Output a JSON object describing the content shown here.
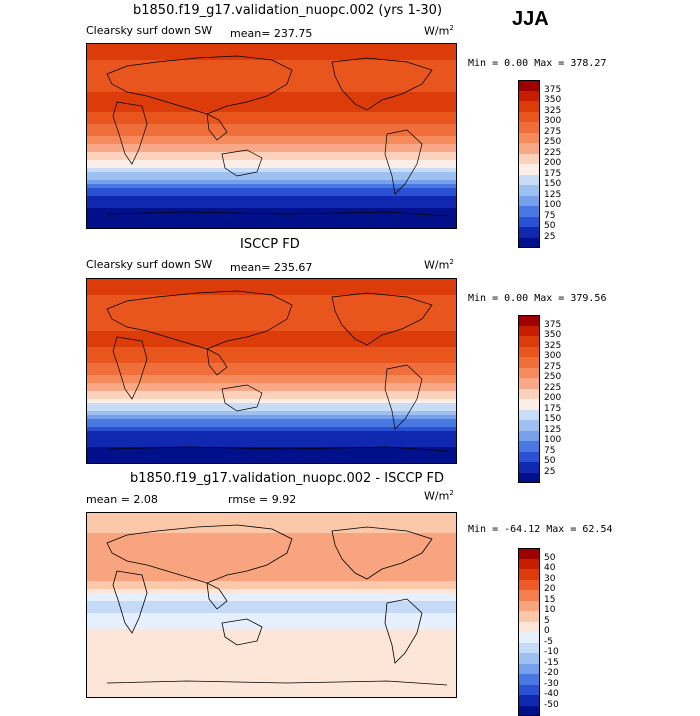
{
  "page": {
    "season": "JJA"
  },
  "panels": [
    {
      "id": "model",
      "title": "b1850.f19_g17.validation_nuopc.002 (yrs 1-30)",
      "variable": "Clearsky surf down SW",
      "mean_text": "mean= 237.75",
      "units_text": "W/m",
      "units_sup": "2",
      "minmax_text": "Min =   0.00 Max = 378.27"
    },
    {
      "id": "obs",
      "title": "ISCCP FD",
      "variable": "Clearsky surf down SW",
      "mean_text": "mean= 235.67",
      "units_text": "W/m",
      "units_sup": "2",
      "minmax_text": "Min =   0.00 Max = 379.56"
    },
    {
      "id": "diff",
      "title": "b1850.f19_g17.validation_nuopc.002 - ISCCP FD",
      "variable": "",
      "mean_text": "mean =   2.08",
      "rmse_text": "rmse =   9.92",
      "units_text": "W/m",
      "units_sup": "2",
      "minmax_text": "Min = -64.12 Max =  62.54"
    }
  ],
  "chart_data": [
    {
      "type": "heatmap",
      "title": "b1850.f19_g17.validation_nuopc.002 (yrs 1-30)",
      "subtitle": "Clearsky surf down SW",
      "mean": 237.75,
      "min": 0.0,
      "max": 378.27,
      "units": "W/m2",
      "colorbar": {
        "levels": [
          "375",
          "350",
          "325",
          "300",
          "275",
          "250",
          "225",
          "200",
          "175",
          "150",
          "125",
          "100",
          "75",
          "50",
          "25"
        ],
        "colors": [
          "#9e0000",
          "#c81e00",
          "#dc3c0a",
          "#e8561e",
          "#f06e3a",
          "#f58a5a",
          "#f8a886",
          "#fcd2bc",
          "#fbeee6",
          "#c8dcf6",
          "#9ec0f0",
          "#76a0ea",
          "#4a78e2",
          "#2a50d4",
          "#1028b0",
          "#00108a"
        ]
      },
      "lat_profile": [
        {
          "lat": 90,
          "value": 350
        },
        {
          "lat": 60,
          "value": 300
        },
        {
          "lat": 30,
          "value": 340
        },
        {
          "lat": 0,
          "value": 280
        },
        {
          "lat": -30,
          "value": 180
        },
        {
          "lat": -60,
          "value": 40
        },
        {
          "lat": -90,
          "value": 0
        }
      ]
    },
    {
      "type": "heatmap",
      "title": "ISCCP FD",
      "subtitle": "Clearsky surf down SW",
      "mean": 235.67,
      "min": 0.0,
      "max": 379.56,
      "units": "W/m2",
      "colorbar": {
        "levels": [
          "375",
          "350",
          "325",
          "300",
          "275",
          "250",
          "225",
          "200",
          "175",
          "150",
          "125",
          "100",
          "75",
          "50",
          "25"
        ],
        "colors": [
          "#9e0000",
          "#c81e00",
          "#dc3c0a",
          "#e8561e",
          "#f06e3a",
          "#f58a5a",
          "#f8a886",
          "#fcd2bc",
          "#fbeee6",
          "#c8dcf6",
          "#9ec0f0",
          "#76a0ea",
          "#4a78e2",
          "#2a50d4",
          "#1028b0",
          "#00108a"
        ]
      },
      "lat_profile": [
        {
          "lat": 90,
          "value": 345
        },
        {
          "lat": 60,
          "value": 305
        },
        {
          "lat": 30,
          "value": 335
        },
        {
          "lat": 0,
          "value": 285
        },
        {
          "lat": -30,
          "value": 185
        },
        {
          "lat": -60,
          "value": 45
        },
        {
          "lat": -90,
          "value": 0
        }
      ]
    },
    {
      "type": "heatmap",
      "title": "b1850.f19_g17.validation_nuopc.002 - ISCCP FD",
      "mean": 2.08,
      "rmse": 9.92,
      "min": -64.12,
      "max": 62.54,
      "units": "W/m2",
      "colorbar": {
        "levels": [
          "50",
          "40",
          "30",
          "20",
          "15",
          "10",
          "5",
          "0",
          "-5",
          "-10",
          "-15",
          "-20",
          "-30",
          "-40",
          "-50"
        ],
        "colors": [
          "#9e0000",
          "#c81e00",
          "#dc3c0a",
          "#ee5a28",
          "#f47e50",
          "#f8a47e",
          "#fbc8aa",
          "#fde6d8",
          "#e6f0fc",
          "#c4daf6",
          "#9ec0f0",
          "#76a0ea",
          "#4a78e2",
          "#2a50d4",
          "#1028b0",
          "#00108a"
        ]
      },
      "lat_profile": [
        {
          "lat": 90,
          "value": 5
        },
        {
          "lat": 60,
          "value": 12
        },
        {
          "lat": 30,
          "value": 15
        },
        {
          "lat": 0,
          "value": -8
        },
        {
          "lat": -30,
          "value": 3
        },
        {
          "lat": -60,
          "value": 2
        },
        {
          "lat": -90,
          "value": 0
        }
      ]
    }
  ]
}
